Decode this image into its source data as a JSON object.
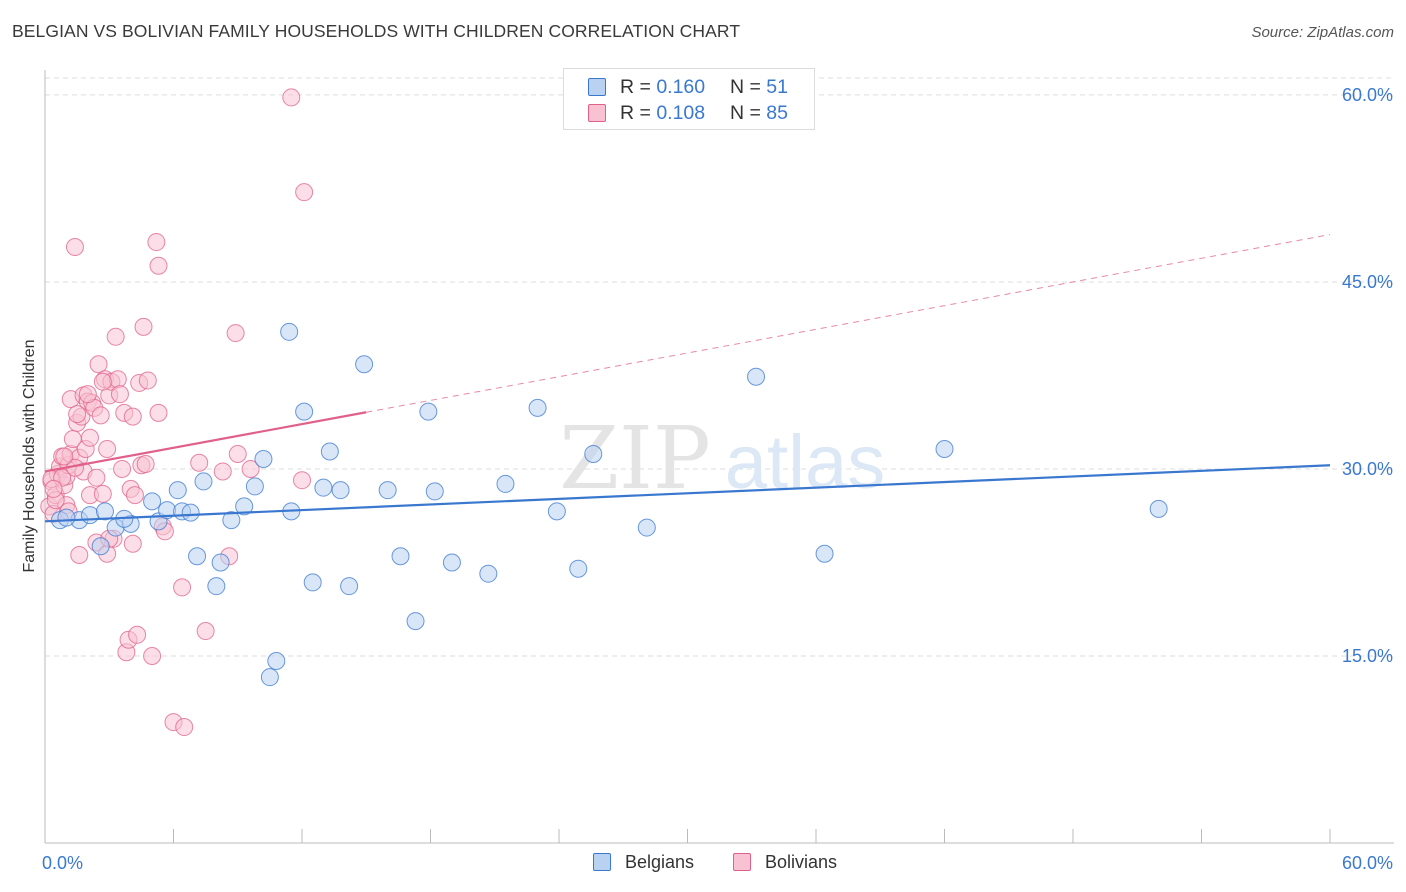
{
  "header": {
    "title": "BELGIAN VS BOLIVIAN FAMILY HOUSEHOLDS WITH CHILDREN CORRELATION CHART",
    "source": "Source: ZipAtlas.com"
  },
  "colors": {
    "blue": "#3a78d0",
    "blue_fill": "#b9d2f2",
    "pink": "#e0608a",
    "pink_fill": "#f8c2d3",
    "axis_tick_text": "#3a78d0",
    "grid": "#dddddd"
  },
  "legend": {
    "series": [
      {
        "name": "Belgians",
        "r_label": "R = ",
        "r_value": "0.160",
        "n_label": "N = ",
        "n_value": "51"
      },
      {
        "name": "Bolivians",
        "r_label": "R = ",
        "r_value": "0.108",
        "n_label": "N = ",
        "n_value": "85"
      }
    ]
  },
  "watermark": {
    "zip": "ZIP",
    "atlas": "atlas"
  },
  "chart_data": {
    "type": "scatter",
    "title": "BELGIAN VS BOLIVIAN FAMILY HOUSEHOLDS WITH CHILDREN CORRELATION CHART",
    "xlabel": "",
    "ylabel": "Family Households with Children",
    "xlim": [
      0,
      60
    ],
    "ylim": [
      0,
      62
    ],
    "x_tick_labels": [
      "0.0%",
      "60.0%"
    ],
    "y_ticks": [
      15,
      30,
      45,
      60
    ],
    "y_tick_labels": [
      "15.0%",
      "30.0%",
      "45.0%",
      "60.0%"
    ],
    "grid": true,
    "legend_position": "top-center",
    "series": [
      {
        "name": "Belgians",
        "color": "#3a78d0",
        "trend": {
          "x0": 0,
          "y0": 25.8,
          "x1": 60,
          "y1": 30.3,
          "solid_until": 60
        },
        "points": [
          [
            0.7,
            25.9
          ],
          [
            1.6,
            25.9
          ],
          [
            2.1,
            26.3
          ],
          [
            2.6,
            23.8
          ],
          [
            2.8,
            26.6
          ],
          [
            3.3,
            25.3
          ],
          [
            4.0,
            25.6
          ],
          [
            5.0,
            27.4
          ],
          [
            5.3,
            25.8
          ],
          [
            5.7,
            26.7
          ],
          [
            6.2,
            28.3
          ],
          [
            6.4,
            26.6
          ],
          [
            7.1,
            23.0
          ],
          [
            7.4,
            29.0
          ],
          [
            8.0,
            20.6
          ],
          [
            8.2,
            22.5
          ],
          [
            9.3,
            27.0
          ],
          [
            9.8,
            28.6
          ],
          [
            10.2,
            30.8
          ],
          [
            10.5,
            13.3
          ],
          [
            10.8,
            14.6
          ],
          [
            11.4,
            41.0
          ],
          [
            11.5,
            26.6
          ],
          [
            12.1,
            34.6
          ],
          [
            12.5,
            20.9
          ],
          [
            13.0,
            28.5
          ],
          [
            13.3,
            31.4
          ],
          [
            13.8,
            28.3
          ],
          [
            14.2,
            20.6
          ],
          [
            14.9,
            38.4
          ],
          [
            16.0,
            28.3
          ],
          [
            16.6,
            23.0
          ],
          [
            17.3,
            17.8
          ],
          [
            17.9,
            34.6
          ],
          [
            18.2,
            28.2
          ],
          [
            19.0,
            22.5
          ],
          [
            20.7,
            21.6
          ],
          [
            21.5,
            28.8
          ],
          [
            23.0,
            34.9
          ],
          [
            23.9,
            26.6
          ],
          [
            24.9,
            22.0
          ],
          [
            25.6,
            31.2
          ],
          [
            28.1,
            25.3
          ],
          [
            33.2,
            37.4
          ],
          [
            36.4,
            23.2
          ],
          [
            42.0,
            31.6
          ],
          [
            52.0,
            26.8
          ],
          [
            3.7,
            26.0
          ],
          [
            6.8,
            26.5
          ],
          [
            1.0,
            26.1
          ],
          [
            8.7,
            25.9
          ]
        ]
      },
      {
        "name": "Bolivians",
        "color": "#e0608a",
        "trend": {
          "x0": 0,
          "y0": 29.8,
          "x1": 60,
          "y1": 48.8,
          "solid_until": 15
        },
        "points": [
          [
            0.2,
            27.0
          ],
          [
            0.3,
            29.0
          ],
          [
            0.4,
            26.4
          ],
          [
            0.5,
            27.9
          ],
          [
            0.6,
            29.6
          ],
          [
            0.7,
            30.2
          ],
          [
            0.8,
            31.0
          ],
          [
            0.9,
            28.7
          ],
          [
            1.0,
            29.4
          ],
          [
            1.0,
            27.1
          ],
          [
            1.1,
            30.3
          ],
          [
            1.2,
            31.2
          ],
          [
            1.2,
            35.6
          ],
          [
            1.3,
            32.4
          ],
          [
            1.4,
            47.8
          ],
          [
            1.5,
            33.7
          ],
          [
            1.6,
            30.9
          ],
          [
            1.6,
            23.1
          ],
          [
            1.7,
            34.2
          ],
          [
            1.8,
            29.8
          ],
          [
            1.8,
            35.9
          ],
          [
            1.9,
            31.6
          ],
          [
            2.0,
            35.4
          ],
          [
            2.1,
            32.5
          ],
          [
            2.1,
            27.9
          ],
          [
            2.2,
            35.3
          ],
          [
            2.3,
            34.9
          ],
          [
            2.4,
            29.3
          ],
          [
            2.4,
            24.1
          ],
          [
            2.5,
            38.4
          ],
          [
            2.6,
            34.3
          ],
          [
            2.7,
            28.0
          ],
          [
            2.8,
            37.2
          ],
          [
            2.9,
            31.6
          ],
          [
            2.9,
            23.2
          ],
          [
            3.0,
            35.9
          ],
          [
            3.1,
            37.0
          ],
          [
            3.2,
            24.4
          ],
          [
            3.3,
            40.6
          ],
          [
            3.4,
            37.2
          ],
          [
            3.5,
            36.0
          ],
          [
            3.6,
            30.0
          ],
          [
            3.7,
            34.5
          ],
          [
            3.8,
            15.3
          ],
          [
            3.9,
            16.3
          ],
          [
            4.0,
            28.4
          ],
          [
            4.1,
            24.0
          ],
          [
            4.1,
            34.2
          ],
          [
            4.2,
            27.9
          ],
          [
            4.3,
            16.7
          ],
          [
            4.4,
            36.9
          ],
          [
            4.5,
            30.3
          ],
          [
            4.6,
            41.4
          ],
          [
            4.7,
            30.4
          ],
          [
            4.8,
            37.1
          ],
          [
            5.0,
            15.0
          ],
          [
            5.2,
            48.2
          ],
          [
            5.3,
            46.3
          ],
          [
            5.3,
            34.5
          ],
          [
            5.5,
            25.4
          ],
          [
            5.6,
            25.0
          ],
          [
            6.0,
            9.7
          ],
          [
            6.4,
            20.5
          ],
          [
            6.5,
            9.3
          ],
          [
            7.2,
            30.5
          ],
          [
            7.5,
            17.0
          ],
          [
            8.3,
            29.8
          ],
          [
            8.6,
            23.0
          ],
          [
            8.9,
            40.9
          ],
          [
            9.0,
            31.2
          ],
          [
            9.6,
            30.0
          ],
          [
            11.5,
            59.8
          ],
          [
            12.0,
            29.1
          ],
          [
            12.1,
            52.2
          ],
          [
            0.3,
            29.2
          ],
          [
            0.5,
            27.5
          ],
          [
            0.8,
            29.3
          ],
          [
            1.4,
            30.1
          ],
          [
            2.0,
            36.0
          ],
          [
            3.0,
            24.4
          ],
          [
            0.9,
            31.0
          ],
          [
            1.1,
            26.6
          ],
          [
            1.5,
            34.4
          ],
          [
            2.7,
            37.0
          ],
          [
            0.4,
            28.4
          ]
        ]
      }
    ]
  }
}
